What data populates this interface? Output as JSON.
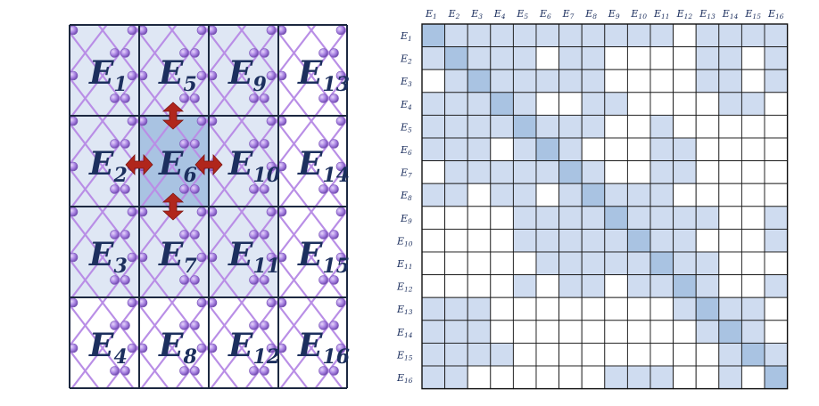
{
  "colors": {
    "background": "#ffffff",
    "grid_line": "#1c2840",
    "label": "#1c2f5e",
    "cell_light": "#dfe7f4",
    "cell_center": "#a9c3e2",
    "cell_white": "#ffffff",
    "bond": "#b98ee6",
    "atom": "#a781e1",
    "arrow": "#b0261c",
    "matrix_diagonal": "#a9c3e2",
    "matrix_offdiagonal": "#cfdcf0"
  },
  "lattice": {
    "grid_size": 4,
    "center_cell": "E6",
    "neighbors_with_arrows": [
      "E2",
      "E5",
      "E7",
      "E10"
    ],
    "cells": [
      {
        "id": "E1",
        "main": "E",
        "sub": "1",
        "shade": "light"
      },
      {
        "id": "E5",
        "main": "E",
        "sub": "5",
        "shade": "light"
      },
      {
        "id": "E9",
        "main": "E",
        "sub": "9",
        "shade": "light"
      },
      {
        "id": "E13",
        "main": "E",
        "sub": "13",
        "shade": "white"
      },
      {
        "id": "E2",
        "main": "E",
        "sub": "2",
        "shade": "light"
      },
      {
        "id": "E6",
        "main": "E",
        "sub": "6",
        "shade": "center"
      },
      {
        "id": "E10",
        "main": "E",
        "sub": "10",
        "shade": "light"
      },
      {
        "id": "E14",
        "main": "E",
        "sub": "14",
        "shade": "white"
      },
      {
        "id": "E3",
        "main": "E",
        "sub": "3",
        "shade": "light"
      },
      {
        "id": "E7",
        "main": "E",
        "sub": "7",
        "shade": "light"
      },
      {
        "id": "E11",
        "main": "E",
        "sub": "11",
        "shade": "light"
      },
      {
        "id": "E15",
        "main": "E",
        "sub": "15",
        "shade": "white"
      },
      {
        "id": "E4",
        "main": "E",
        "sub": "4",
        "shade": "white"
      },
      {
        "id": "E8",
        "main": "E",
        "sub": "8",
        "shade": "white"
      },
      {
        "id": "E12",
        "main": "E",
        "sub": "12",
        "shade": "white"
      },
      {
        "id": "E16",
        "main": "E",
        "sub": "16",
        "shade": "white"
      }
    ]
  },
  "matrix": {
    "size": 16,
    "labels": [
      {
        "main": "E",
        "sub": "1"
      },
      {
        "main": "E",
        "sub": "2"
      },
      {
        "main": "E",
        "sub": "3"
      },
      {
        "main": "E",
        "sub": "4"
      },
      {
        "main": "E",
        "sub": "5"
      },
      {
        "main": "E",
        "sub": "6"
      },
      {
        "main": "E",
        "sub": "7"
      },
      {
        "main": "E",
        "sub": "8"
      },
      {
        "main": "E",
        "sub": "9"
      },
      {
        "main": "E",
        "sub": "10"
      },
      {
        "main": "E",
        "sub": "11"
      },
      {
        "main": "E",
        "sub": "12"
      },
      {
        "main": "E",
        "sub": "13"
      },
      {
        "main": "E",
        "sub": "14"
      },
      {
        "main": "E",
        "sub": "15"
      },
      {
        "main": "E",
        "sub": "16"
      }
    ],
    "cells": [
      "2111111111101111",
      "1211101100001101",
      "0121111100001101",
      "1112100110000110",
      "1111211100100000",
      "1110121000110000",
      "0111112100110000",
      "1101101211100000",
      "0000111121111001",
      "0000111112110001",
      "0000011111211000",
      "0000101101121001",
      "1110000000012110",
      "1110000000001210",
      "1111000000000121",
      "1100000011100102"
    ]
  }
}
